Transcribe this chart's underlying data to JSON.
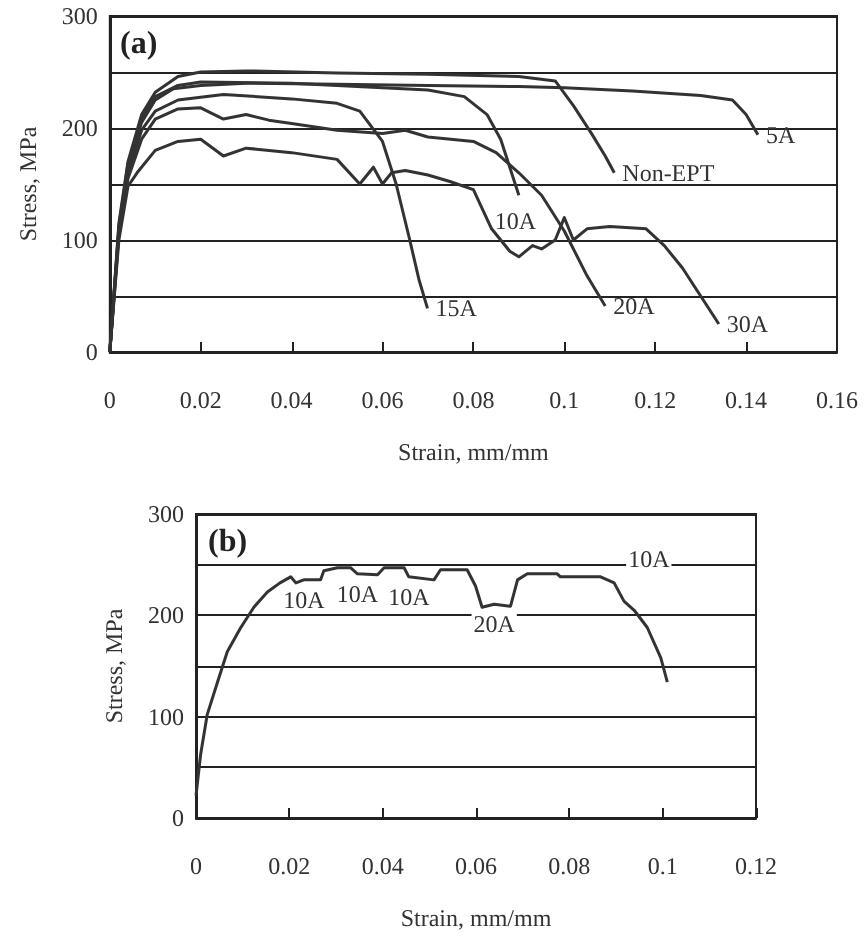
{
  "chart_data": [
    {
      "type": "line",
      "title": "(a)",
      "xlabel": "Strain, mm/mm",
      "ylabel": "Stress, MPa",
      "xlim": [
        0,
        0.16
      ],
      "xticks": [
        0,
        0.02,
        0.04,
        0.06,
        0.08,
        0.1,
        0.12,
        0.14,
        0.16
      ],
      "ylim": [
        0,
        300
      ],
      "yticks": [
        0,
        {
          "value": 50,
          "label": null
        },
        100,
        {
          "value": 150,
          "label": null
        },
        200,
        {
          "value": 250,
          "label": null
        },
        300
      ],
      "grid": "y",
      "legend": false,
      "marker": "none",
      "line_style": "solid",
      "series": [
        {
          "name": "5A",
          "color": "#333333",
          "x": [
            0,
            0.002,
            0.004,
            0.007,
            0.01,
            0.014,
            0.02,
            0.03,
            0.05,
            0.07,
            0.09,
            0.1,
            0.115,
            0.13,
            0.137,
            0.14,
            0.1426
          ],
          "values": [
            0,
            110,
            165,
            205,
            225,
            235,
            238,
            240,
            239,
            238,
            237,
            236,
            233,
            229,
            225,
            212,
            194
          ]
        },
        {
          "name": "Non-EPT",
          "color": "#333333",
          "x": [
            0,
            0.002,
            0.004,
            0.007,
            0.01,
            0.015,
            0.02,
            0.03,
            0.05,
            0.07,
            0.09,
            0.098,
            0.102,
            0.106,
            0.109,
            0.111
          ],
          "values": [
            0,
            115,
            170,
            212,
            232,
            246,
            250,
            251,
            249,
            248,
            246,
            242,
            220,
            195,
            175,
            160
          ]
        },
        {
          "name": "10A",
          "color": "#333333",
          "x": [
            0,
            0.002,
            0.004,
            0.007,
            0.01,
            0.015,
            0.02,
            0.04,
            0.06,
            0.07,
            0.078,
            0.083,
            0.086,
            0.088,
            0.09
          ],
          "values": [
            0,
            112,
            168,
            208,
            228,
            238,
            241,
            240,
            236,
            234,
            228,
            212,
            190,
            165,
            140
          ]
        },
        {
          "name": "15A",
          "color": "#333333",
          "x": [
            0,
            0.002,
            0.004,
            0.007,
            0.01,
            0.015,
            0.025,
            0.04,
            0.05,
            0.055,
            0.06,
            0.063,
            0.066,
            0.068,
            0.0699
          ],
          "values": [
            0,
            108,
            160,
            198,
            215,
            225,
            230,
            226,
            222,
            215,
            188,
            150,
            100,
            65,
            39
          ]
        },
        {
          "name": "20A",
          "color": "#333333",
          "x": [
            0,
            0.002,
            0.004,
            0.007,
            0.01,
            0.015,
            0.02,
            0.025,
            0.03,
            0.035,
            0.04,
            0.05,
            0.06,
            0.065,
            0.07,
            0.075,
            0.08,
            0.085,
            0.09,
            0.095,
            0.1,
            0.105,
            0.109
          ],
          "values": [
            0,
            105,
            155,
            190,
            208,
            217,
            218,
            208,
            212,
            207,
            204,
            198,
            195,
            198,
            192,
            190,
            188,
            178,
            160,
            140,
            108,
            68,
            41
          ]
        },
        {
          "name": "30A",
          "color": "#333333",
          "x": [
            0,
            0.002,
            0.004,
            0.006,
            0.01,
            0.015,
            0.02,
            0.025,
            0.03,
            0.04,
            0.05,
            0.055,
            0.058,
            0.06,
            0.062,
            0.065,
            0.07,
            0.075,
            0.08,
            0.084,
            0.088,
            0.09,
            0.093,
            0.095,
            0.098,
            0.1,
            0.102,
            0.105,
            0.11,
            0.118,
            0.122,
            0.126,
            0.13,
            0.134
          ],
          "values": [
            0,
            100,
            148,
            160,
            180,
            188,
            190,
            175,
            182,
            178,
            172,
            150,
            165,
            150,
            160,
            162,
            158,
            152,
            145,
            110,
            90,
            85,
            95,
            92,
            100,
            120,
            100,
            110,
            112,
            110,
            95,
            75,
            50,
            25
          ]
        }
      ]
    },
    {
      "type": "line",
      "title": "(b)",
      "xlabel": "Strain, mm/mm",
      "ylabel": "Stress, MPa",
      "xlim": [
        0,
        0.12
      ],
      "xticks": [
        0,
        0.02,
        0.04,
        0.06,
        0.08,
        0.1,
        0.12
      ],
      "ylim": [
        0,
        300
      ],
      "yticks": [
        0,
        {
          "value": 50,
          "label": null
        },
        100,
        {
          "value": 150,
          "label": null
        },
        200,
        {
          "value": 250,
          "label": null
        },
        300
      ],
      "grid": "y",
      "legend": false,
      "marker": "none",
      "line_style": "solid",
      "series": [
        {
          "color": "#333333",
          "x": [
            0,
            0.001,
            0.0024,
            0.0046,
            0.0067,
            0.0096,
            0.0124,
            0.0153,
            0.018,
            0.0203,
            0.0214,
            0.0231,
            0.0267,
            0.0274,
            0.0303,
            0.0331,
            0.0346,
            0.0389,
            0.0403,
            0.0446,
            0.0456,
            0.051,
            0.0524,
            0.0581,
            0.0599,
            0.0613,
            0.0639,
            0.0674,
            0.0689,
            0.071,
            0.0774,
            0.0781,
            0.0867,
            0.0896,
            0.0917,
            0.0939,
            0.0967,
            0.0996,
            0.101
          ],
          "values": [
            22,
            63,
            102,
            134,
            164,
            188,
            208,
            223,
            232,
            238,
            232,
            235,
            235,
            244,
            247,
            247,
            241,
            240,
            247,
            247,
            238,
            235,
            245,
            245,
            229,
            208,
            211,
            209,
            235,
            241,
            241,
            238,
            238,
            232,
            214,
            205,
            188,
            158,
            134
          ]
        }
      ],
      "annotations": [
        {
          "text": "10A",
          "x": 0.0231,
          "y": 235
        },
        {
          "text": "10A",
          "x": 0.0346,
          "y": 241
        },
        {
          "text": "10A",
          "x": 0.0456,
          "y": 238
        },
        {
          "text": "20A",
          "x": 0.0639,
          "y": 211
        },
        {
          "text": "10A",
          "x": 0.0896,
          "y": 232
        }
      ]
    }
  ]
}
